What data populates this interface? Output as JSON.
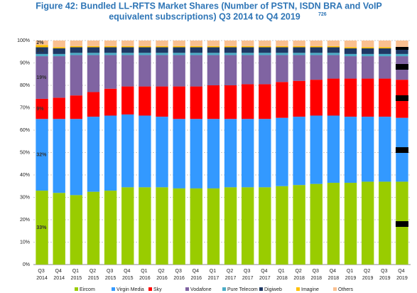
{
  "chart_data": {
    "type": "stacked_bar",
    "title": [
      "Figure 42: Bundled LL-RFTS Market Shares (Number of PSTN, ISDN BRA and VoIP",
      "equivalent subscriptions) Q3 2014 to Q4 2019"
    ],
    "title_footnote": "726",
    "categories": [
      "Q3 2014",
      "Q4 2014",
      "Q1 2015",
      "Q2 2015",
      "Q3 2015",
      "Q4 2015",
      "Q1 2016",
      "Q2 2016",
      "Q3 2016",
      "Q4 2016",
      "Q1 2017",
      "Q2 2017",
      "Q3 2017",
      "Q4 2017",
      "Q1 2018",
      "Q2 2018",
      "Q3 2018",
      "Q4 2018",
      "Q1 2019",
      "Q2 2019",
      "Q3 2019",
      "Q4 2019"
    ],
    "series": [
      {
        "name": "Eircom",
        "color": "#99cc00",
        "values": [
          33,
          32,
          31,
          32.5,
          33,
          34.5,
          34.5,
          34.5,
          34,
          34,
          34,
          34.5,
          34.5,
          34.5,
          35,
          35.5,
          36,
          36.5,
          36.5,
          37,
          37,
          37
        ],
        "value_labels": [
          "33%",
          null,
          null,
          null,
          null,
          null,
          null,
          null,
          null,
          null,
          null,
          null,
          null,
          null,
          null,
          null,
          null,
          null,
          null,
          null,
          null,
          null
        ]
      },
      {
        "name": "Virgin Media",
        "color": "#3399ff",
        "values": [
          32,
          33,
          34,
          33.5,
          33.5,
          32.5,
          32,
          31.5,
          31,
          31,
          31,
          30.5,
          30.5,
          30.5,
          30.5,
          30.5,
          30.5,
          30,
          29.5,
          29,
          29,
          28.5
        ],
        "value_labels": [
          "32%",
          null,
          null,
          null,
          null,
          null,
          null,
          null,
          null,
          null,
          null,
          null,
          null,
          null,
          null,
          null,
          null,
          null,
          null,
          null,
          null,
          null
        ]
      },
      {
        "name": "Sky",
        "color": "#ff0000",
        "values": [
          9,
          9.5,
          10.5,
          11,
          12,
          12.5,
          13,
          13.5,
          14.5,
          14.5,
          15,
          15,
          15.5,
          15.5,
          16,
          16,
          16,
          16.5,
          17,
          17,
          17,
          17
        ],
        "value_labels": [
          "9%",
          null,
          null,
          null,
          null,
          null,
          null,
          null,
          null,
          null,
          null,
          null,
          null,
          null,
          null,
          null,
          null,
          null,
          null,
          null,
          null,
          null
        ]
      },
      {
        "name": "Vodafone",
        "color": "#8064a2",
        "values": [
          19,
          18.5,
          18,
          16.5,
          15,
          14,
          14,
          14,
          14,
          14,
          13.5,
          13.5,
          13,
          13,
          12,
          11.5,
          11,
          10.5,
          10,
          10,
          10,
          10.5
        ],
        "value_labels": [
          "19%",
          null,
          null,
          null,
          null,
          null,
          null,
          null,
          null,
          null,
          null,
          null,
          null,
          null,
          null,
          null,
          null,
          null,
          null,
          null,
          null,
          null
        ]
      },
      {
        "name": "Pure Telecom",
        "color": "#4bacc6",
        "values": [
          1,
          1,
          1,
          1,
          1,
          1,
          1,
          1,
          1,
          1,
          1,
          1,
          1,
          1,
          1,
          1,
          1,
          1,
          1,
          1,
          1,
          1
        ]
      },
      {
        "name": "Digiweb",
        "color": "#1f3864",
        "values": [
          3,
          2.5,
          2.5,
          2.5,
          2.5,
          2.5,
          2.5,
          2.5,
          2.5,
          2.5,
          2.5,
          2.5,
          2.5,
          2.5,
          2.5,
          2.5,
          2.5,
          2.5,
          2.5,
          2.5,
          2.5,
          2.5
        ],
        "value_labels": [
          "3%",
          null,
          null,
          null,
          null,
          null,
          null,
          null,
          null,
          null,
          null,
          null,
          null,
          null,
          null,
          null,
          null,
          null,
          null,
          null,
          null,
          null
        ]
      },
      {
        "name": "Imagine",
        "color": "#ffc000",
        "values": [
          1,
          0.5,
          0.5,
          0.5,
          0.5,
          0.5,
          0.5,
          0.5,
          0.5,
          0.5,
          0.5,
          0.5,
          0.5,
          0.5,
          0.5,
          0.5,
          0.5,
          0.5,
          0.5,
          0.5,
          0.5,
          0.5
        ]
      },
      {
        "name": "Others",
        "color": "#fac090",
        "values": [
          2,
          3,
          2.5,
          2.5,
          2.5,
          2.5,
          2.5,
          2.5,
          2.5,
          2.5,
          2.5,
          2.5,
          2.5,
          2.5,
          2.5,
          2.5,
          2.5,
          2.5,
          3,
          3,
          3,
          3
        ],
        "value_labels": [
          "2%",
          null,
          null,
          null,
          null,
          null,
          null,
          null,
          null,
          null,
          null,
          null,
          null,
          null,
          null,
          null,
          null,
          null,
          null,
          null,
          null,
          null
        ]
      }
    ],
    "ylim": [
      0,
      100
    ],
    "yticks": [
      {
        "value": 0,
        "label": "0%"
      },
      {
        "value": 10,
        "label": "10%"
      },
      {
        "value": 20,
        "label": "20%"
      },
      {
        "value": 30,
        "label": "30%"
      },
      {
        "value": 40,
        "label": "40%"
      },
      {
        "value": 50,
        "label": "50%"
      },
      {
        "value": 60,
        "label": "60%"
      },
      {
        "value": 70,
        "label": "70%"
      },
      {
        "value": 80,
        "label": "80%"
      },
      {
        "value": 90,
        "label": "90%"
      },
      {
        "value": 100,
        "label": "100%"
      }
    ],
    "grid": true,
    "legend": "bottom"
  }
}
